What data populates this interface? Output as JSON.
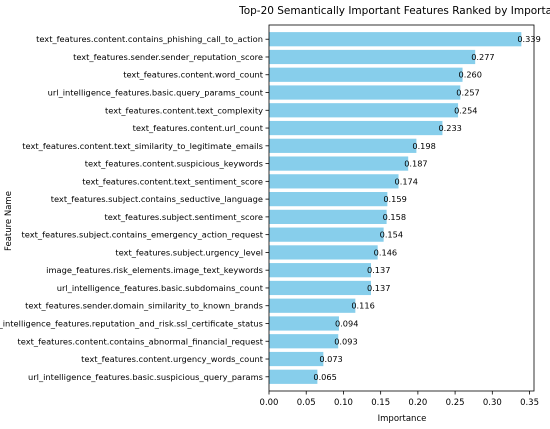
{
  "chart_data": {
    "type": "bar",
    "orientation": "horizontal",
    "title": "Top-20 Semantically Important Features Ranked by Importance",
    "xlabel": "Importance",
    "ylabel": "Feature Name",
    "xlim": [
      0,
      0.356
    ],
    "xticks": [
      "0.00",
      "0.05",
      "0.10",
      "0.15",
      "0.20",
      "0.25",
      "0.30",
      "0.35"
    ],
    "bar_color": "#87CEEB",
    "grid": false,
    "categories": [
      "text_features.content.contains_phishing_call_to_action",
      "text_features.sender.sender_reputation_score",
      "text_features.content.word_count",
      "url_intelligence_features.basic.query_params_count",
      "text_features.content.text_complexity",
      "text_features.content.url_count",
      "text_features.content.text_similarity_to_legitimate_emails",
      "text_features.content.suspicious_keywords",
      "text_features.content.text_sentiment_score",
      "text_features.subject.contains_seductive_language",
      "text_features.subject.sentiment_score",
      "text_features.subject.contains_emergency_action_request",
      "text_features.subject.urgency_level",
      "image_features.risk_elements.image_text_keywords",
      "url_intelligence_features.basic.subdomains_count",
      "text_features.sender.domain_similarity_to_known_brands",
      "url_intelligence_features.reputation_and_risk.ssl_certificate_status",
      "text_features.content.contains_abnormal_financial_request",
      "text_features.content.urgency_words_count",
      "url_intelligence_features.basic.suspicious_query_params"
    ],
    "values": [
      0.339,
      0.277,
      0.26,
      0.257,
      0.254,
      0.233,
      0.198,
      0.187,
      0.174,
      0.159,
      0.158,
      0.154,
      0.146,
      0.137,
      0.137,
      0.116,
      0.094,
      0.093,
      0.073,
      0.065
    ],
    "value_labels": [
      "0.339",
      "0.277",
      "0.260",
      "0.257",
      "0.254",
      "0.233",
      "0.198",
      "0.187",
      "0.174",
      "0.159",
      "0.158",
      "0.154",
      "0.146",
      "0.137",
      "0.137",
      "0.116",
      "0.094",
      "0.093",
      "0.073",
      "0.065"
    ]
  }
}
